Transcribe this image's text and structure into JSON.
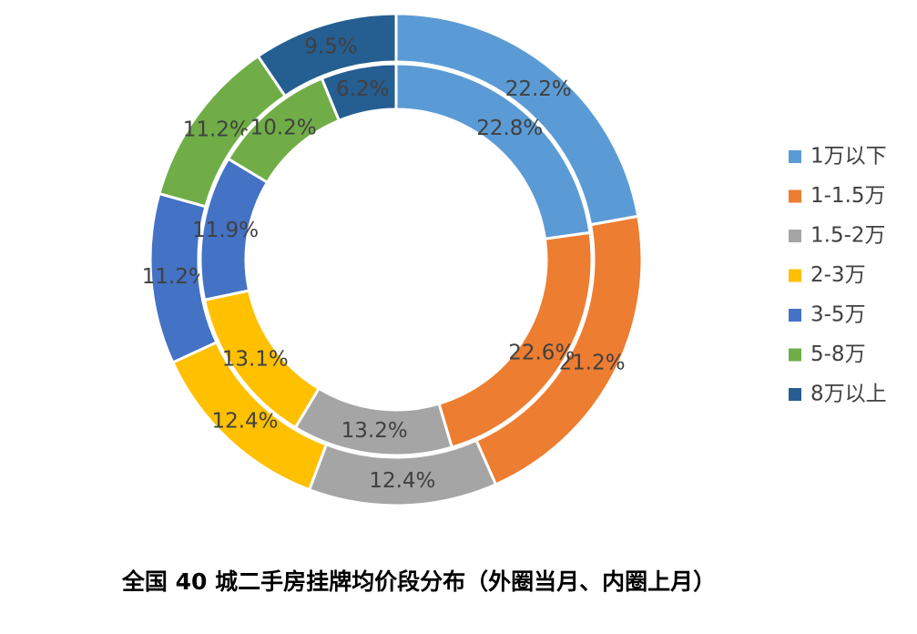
{
  "chart_data": {
    "type": "donut",
    "title": "全国 40 城二手房挂牌均价段分布（外圈当月、内圈上月）",
    "categories": [
      "1万以下",
      "1-1.5万",
      "1.5-2万",
      "2-3万",
      "3-5万",
      "5-8万",
      "8万以上"
    ],
    "colors": [
      "#5b9bd5",
      "#ed7d31",
      "#a5a5a5",
      "#ffc000",
      "#4472c4",
      "#70ad47",
      "#255e91"
    ],
    "series": [
      {
        "values": [
          22.2,
          21.2,
          12.4,
          12.4,
          11.2,
          11.2,
          9.5
        ],
        "value_labels": [
          "22.2%",
          "21.2%",
          "12.4%",
          "12.4%",
          "11.2%",
          "11.2%",
          "9.5%"
        ]
      },
      {
        "values": [
          22.8,
          22.6,
          13.2,
          13.1,
          11.9,
          10.2,
          6.2
        ],
        "value_labels": [
          "22.8%",
          "22.6%",
          "13.2%",
          "13.1%",
          "11.9%",
          "10.2%",
          "6.2%"
        ]
      }
    ],
    "legend": "right"
  }
}
